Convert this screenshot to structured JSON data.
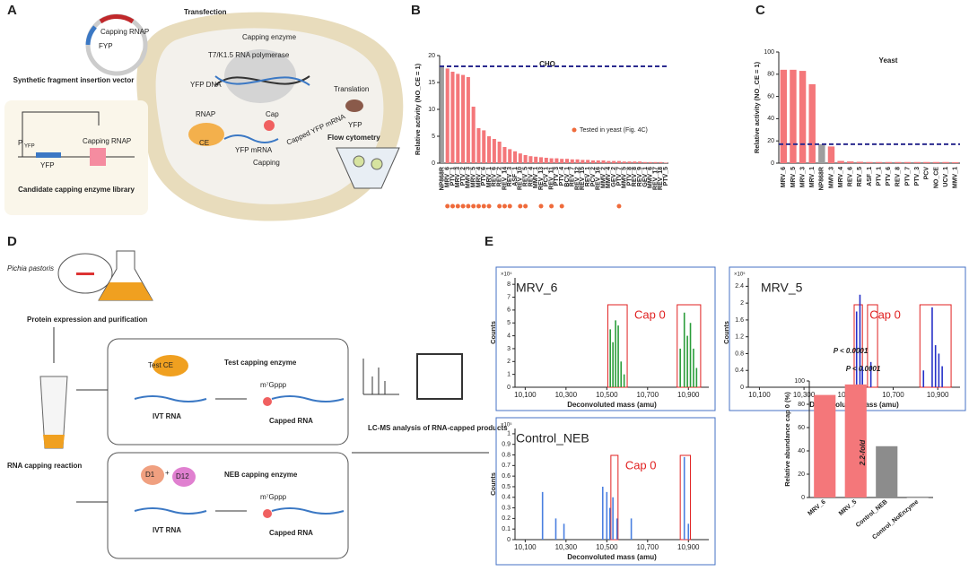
{
  "panel_labels": [
    "A",
    "B",
    "C",
    "D",
    "E"
  ],
  "diagram_a": {
    "transfection": "Transfection",
    "plasmid_gene": "Capping RNAP",
    "plasmid_fyp": "FYP",
    "vector_title": "Synthetic fragment insertion vector",
    "capping_enzyme": "Capping enzyme",
    "polymerase": "T7/K1.5 RNA polymerase",
    "yfp_dna": "YFP DNA",
    "rnap": "RNAP",
    "ce": "CE",
    "yfp_mrna": "YFP mRNA",
    "cap": "Cap",
    "capped_mrna": "Capped YFP mRNA",
    "capping": "Capping",
    "translation": "Translation",
    "yfp_protein": "YFP",
    "flow": "Flow cytometry",
    "promoter": "P",
    "promoter_sub": "YFP",
    "vector_yfp": "YFP",
    "vector_rnap": "Capping RNAP",
    "library": "Candidate capping enzyme library"
  },
  "diagram_d": {
    "organism": "Pichia pastoris",
    "expression": "Protein expression and purification",
    "test_ce": "Test CE",
    "test_enzyme": "Test capping enzyme",
    "ivt_1": "IVT RNA",
    "cap_1": "m⁷Gppp",
    "capped_1": "Capped RNA",
    "reaction": "RNA capping reaction",
    "d1": "D1",
    "plus": "+",
    "d12": "D12",
    "neb_enzyme": "NEB capping enzyme",
    "ivt_2": "IVT RNA",
    "cap_2": "m⁷Gppp",
    "capped_2": "Capped RNA",
    "lcms": "LC-MS analysis of RNA-capped products"
  },
  "chart_data": [
    {
      "type": "bar",
      "title": "CHO",
      "y_label": "Relative activity (NO_CE = 1)",
      "categories": [
        "NP868R",
        "MRV_6",
        "PTV_1",
        "MRV_3",
        "PTV_2",
        "MMV_3",
        "MRV_5",
        "MRV_4",
        "PTV_6",
        "MRV_1",
        "REV_6",
        "REV_2",
        "REV_14",
        "REV_3",
        "ASF_1",
        "REV_10",
        "REV_5",
        "REV_4",
        "MMV_1",
        "REV_13",
        "PCV_1",
        "REV_11",
        "PTV_3",
        "PTV_4",
        "BCV_1",
        "REV_7",
        "REV_12",
        "REV_15",
        "REV_1",
        "PCV_2",
        "REV_16",
        "MMV_2",
        "MMV_4",
        "GEV_2",
        "PTV_7",
        "MMV_5",
        "PTV_8",
        "REV_8",
        "REV_9",
        "GEV_1",
        "MMV_6",
        "REV_17",
        "REV_18",
        "PTV_5"
      ],
      "values": [
        18,
        17.6,
        17,
        16.6,
        16.4,
        16,
        10.5,
        6.5,
        6.1,
        5,
        4.5,
        4,
        3,
        2.6,
        2.2,
        1.8,
        1.5,
        1.3,
        1.2,
        1.1,
        1,
        0.9,
        0.9,
        0.8,
        0.8,
        0.7,
        0.7,
        0.6,
        0.6,
        0.5,
        0.5,
        0.5,
        0.4,
        0.4,
        0.4,
        0.3,
        0.3,
        0.3,
        0.3,
        0.2,
        0.2,
        0.2,
        0.2,
        0.1
      ],
      "colors": [
        "#9e9e9e",
        "#f4777a",
        "#f4777a",
        "#f4777a",
        "#f4777a",
        "#f4777a",
        "#f4777a",
        "#f4777a",
        "#f4777a",
        "#f4777a",
        "#f4777a",
        "#f4777a",
        "#f4777a",
        "#f4777a",
        "#f4777a",
        "#f4777a",
        "#f4777a",
        "#f4777a",
        "#f4777a",
        "#f4777a",
        "#f4777a",
        "#f4777a",
        "#f4777a",
        "#f4777a",
        "#f4777a",
        "#f4777a",
        "#f4777a",
        "#f4777a",
        "#f4777a",
        "#f4777a",
        "#f4777a",
        "#f4777a",
        "#f4777a",
        "#f4777a",
        "#f4777a",
        "#f4777a",
        "#f4777a",
        "#f4777a",
        "#f4777a",
        "#f4777a",
        "#f4777a",
        "#f4777a",
        "#f4777a",
        "#f4777a"
      ],
      "ylim": [
        0,
        20
      ],
      "yticks": [
        0,
        5,
        10,
        15,
        20
      ],
      "ref_line": {
        "value": 18,
        "color": "#2b2b8f"
      },
      "tested_in_yeast": {
        "name": "Tested in yeast (Fig. 4C)",
        "color": "#ef6b3b",
        "indices": [
          1,
          2,
          3,
          4,
          5,
          6,
          7,
          8,
          9,
          11,
          12,
          13,
          15,
          16,
          19,
          21,
          23,
          34
        ]
      }
    },
    {
      "type": "bar",
      "title": "Yeast",
      "y_label": "Relative activity (NO_CE = 1)",
      "categories": [
        "MRV_6",
        "MRV_5",
        "MRV_3",
        "MRV_1",
        "NP868R",
        "MMV_3",
        "MRV_4",
        "REV_6",
        "REV_5",
        "ASF_1",
        "PTV_1",
        "PTV_6",
        "REV_8",
        "PTV_7",
        "PTV_3",
        "PCV",
        "NO_CE",
        "UCV_1",
        "MMV_1"
      ],
      "values": [
        84,
        84,
        83,
        71,
        17,
        15,
        2,
        1.5,
        1.2,
        1,
        1,
        1,
        1,
        1,
        1,
        1,
        1,
        1,
        0.8
      ],
      "colors": [
        "#f4777a",
        "#f4777a",
        "#f4777a",
        "#f4777a",
        "#9e9e9e",
        "#f4777a",
        "#f4777a",
        "#f4777a",
        "#f4777a",
        "#f4777a",
        "#f4777a",
        "#f4777a",
        "#f4777a",
        "#f4777a",
        "#f4777a",
        "#f4777a",
        "#f4777a",
        "#f4777a",
        "#f4777a"
      ],
      "ylim": [
        0,
        100
      ],
      "yticks": [
        0,
        20,
        40,
        60,
        80,
        100
      ],
      "ref_line": {
        "value": 17,
        "color": "#2b2b8f"
      }
    },
    {
      "type": "spectrum",
      "title": "MRV_6",
      "x_label": "Deconvoluted mass (amu)",
      "y_label": "Counts",
      "y_multiplier": "×10⁴",
      "x": [
        10517,
        10530,
        10543,
        10556,
        10570,
        10585,
        10860,
        10880,
        10895,
        10910,
        10925,
        10940
      ],
      "values": [
        4.5,
        3.5,
        5.2,
        4.8,
        2,
        1,
        3,
        5.8,
        4,
        5,
        3,
        1.5
      ],
      "color": "#2a9d3a",
      "xlim": [
        10050,
        11000
      ],
      "xticks": [
        {
          "value": 10100,
          "label": "10,100"
        },
        {
          "value": 10300,
          "label": "10,300"
        },
        {
          "value": 10500,
          "label": "10,500"
        },
        {
          "value": 10700,
          "label": "10,700"
        },
        {
          "value": 10900,
          "label": "10,900"
        }
      ],
      "ylim": [
        0,
        8.5
      ],
      "yticks": [
        0,
        1,
        2,
        3,
        4,
        5,
        6,
        7,
        8
      ],
      "annotation": "Cap 0",
      "highlight_ranges": [
        [
          10505,
          10600
        ],
        [
          10845,
          10960
        ]
      ]
    },
    {
      "type": "spectrum",
      "title": "MRV_5",
      "x_label": "Deconvoluted mass (amu)",
      "y_label": "Counts",
      "y_multiplier": "×10⁵",
      "x": [
        10536,
        10551,
        10562,
        10600,
        10836,
        10875,
        10890,
        10905,
        10920
      ],
      "values": [
        1.8,
        2.2,
        0.5,
        0.6,
        0.4,
        1.9,
        1,
        0.8,
        0.5
      ],
      "color": "#2530c8",
      "xlim": [
        10050,
        11000
      ],
      "xticks": [
        {
          "value": 10100,
          "label": "10,100"
        },
        {
          "value": 10300,
          "label": "10,300"
        },
        {
          "value": 10500,
          "label": "10,500"
        },
        {
          "value": 10700,
          "label": "10,700"
        },
        {
          "value": 10900,
          "label": "10,900"
        }
      ],
      "ylim": [
        0,
        2.6
      ],
      "yticks": [
        0,
        0.4,
        0.8,
        1.2,
        1.6,
        2,
        2.4
      ],
      "annotation": "Cap 0",
      "highlight_ranges": [
        [
          10525,
          10562
        ],
        [
          10585,
          10630
        ],
        [
          10820,
          10960
        ]
      ]
    },
    {
      "type": "spectrum",
      "title": "Control_NEB",
      "x_label": "Deconvoluted mass (amu)",
      "y_label": "Counts",
      "y_multiplier": "×10⁵",
      "x": [
        10185,
        10250,
        10290,
        10480,
        10500,
        10515,
        10530,
        10550,
        10620,
        10880,
        10900
      ],
      "values": [
        0.45,
        0.2,
        0.15,
        0.5,
        0.45,
        0.3,
        0.4,
        0.2,
        0.2,
        0.78,
        0.15
      ],
      "color": "#4a7fe0",
      "xlim": [
        10050,
        11000
      ],
      "xticks": [
        {
          "value": 10100,
          "label": "10,100"
        },
        {
          "value": 10300,
          "label": "10,300"
        },
        {
          "value": 10500,
          "label": "10,500"
        },
        {
          "value": 10700,
          "label": "10,700"
        },
        {
          "value": 10900,
          "label": "10,900"
        }
      ],
      "ylim": [
        0,
        1.05
      ],
      "yticks": [
        0,
        0.1,
        0.2,
        0.3,
        0.4,
        0.5,
        0.6,
        0.7,
        0.8,
        0.9,
        1
      ],
      "annotation": "Cap 0",
      "highlight_ranges": [
        [
          10520,
          10555
        ],
        [
          10860,
          10910
        ]
      ]
    },
    {
      "type": "bar",
      "y_label": "Relative abundance cap 0 (%)",
      "categories": [
        "MRV_6",
        "MRV_5",
        "Control_NEB",
        "Control_NoEnzyme"
      ],
      "values": [
        88,
        97,
        44,
        0
      ],
      "colors": [
        "#f4777a",
        "#f4777a",
        "#8c8c8c",
        "#8c8c8c"
      ],
      "ylim": [
        0,
        100
      ],
      "yticks": [
        0,
        20,
        40,
        60,
        80,
        100
      ],
      "annotations": [
        "P < 0.0001",
        "P < 0.0001",
        "2.2-fold"
      ]
    }
  ]
}
